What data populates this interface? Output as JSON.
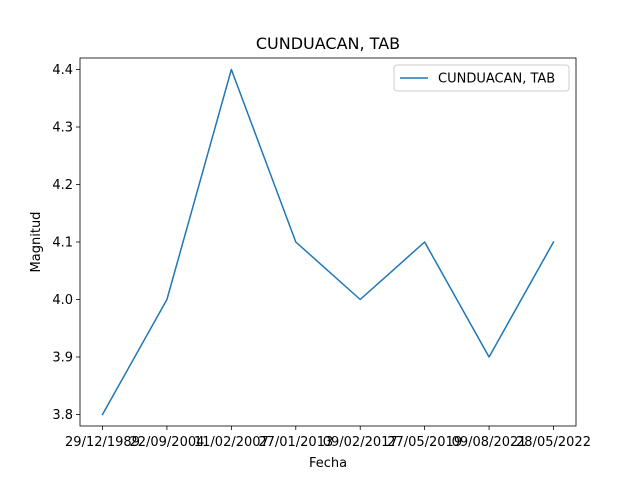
{
  "chart_data": {
    "type": "line",
    "title": "CUNDUACAN, TAB",
    "xlabel": "Fecha",
    "ylabel": "Magnitud",
    "categories": [
      "29/12/1989",
      "22/09/2004",
      "11/02/2007",
      "27/01/2013",
      "09/02/2017",
      "27/05/2019",
      "09/08/2021",
      "28/05/2022"
    ],
    "series": [
      {
        "name": "CUNDUACAN, TAB",
        "values": [
          3.8,
          4.0,
          4.4,
          4.1,
          4.0,
          4.1,
          3.9,
          4.1
        ],
        "color": "#1f77b4"
      }
    ],
    "ylim": [
      3.78,
      4.42
    ],
    "yticks": [
      "3.8",
      "3.9",
      "4.0",
      "4.1",
      "4.2",
      "4.3",
      "4.4"
    ],
    "legend": "top-right",
    "grid": false
  }
}
